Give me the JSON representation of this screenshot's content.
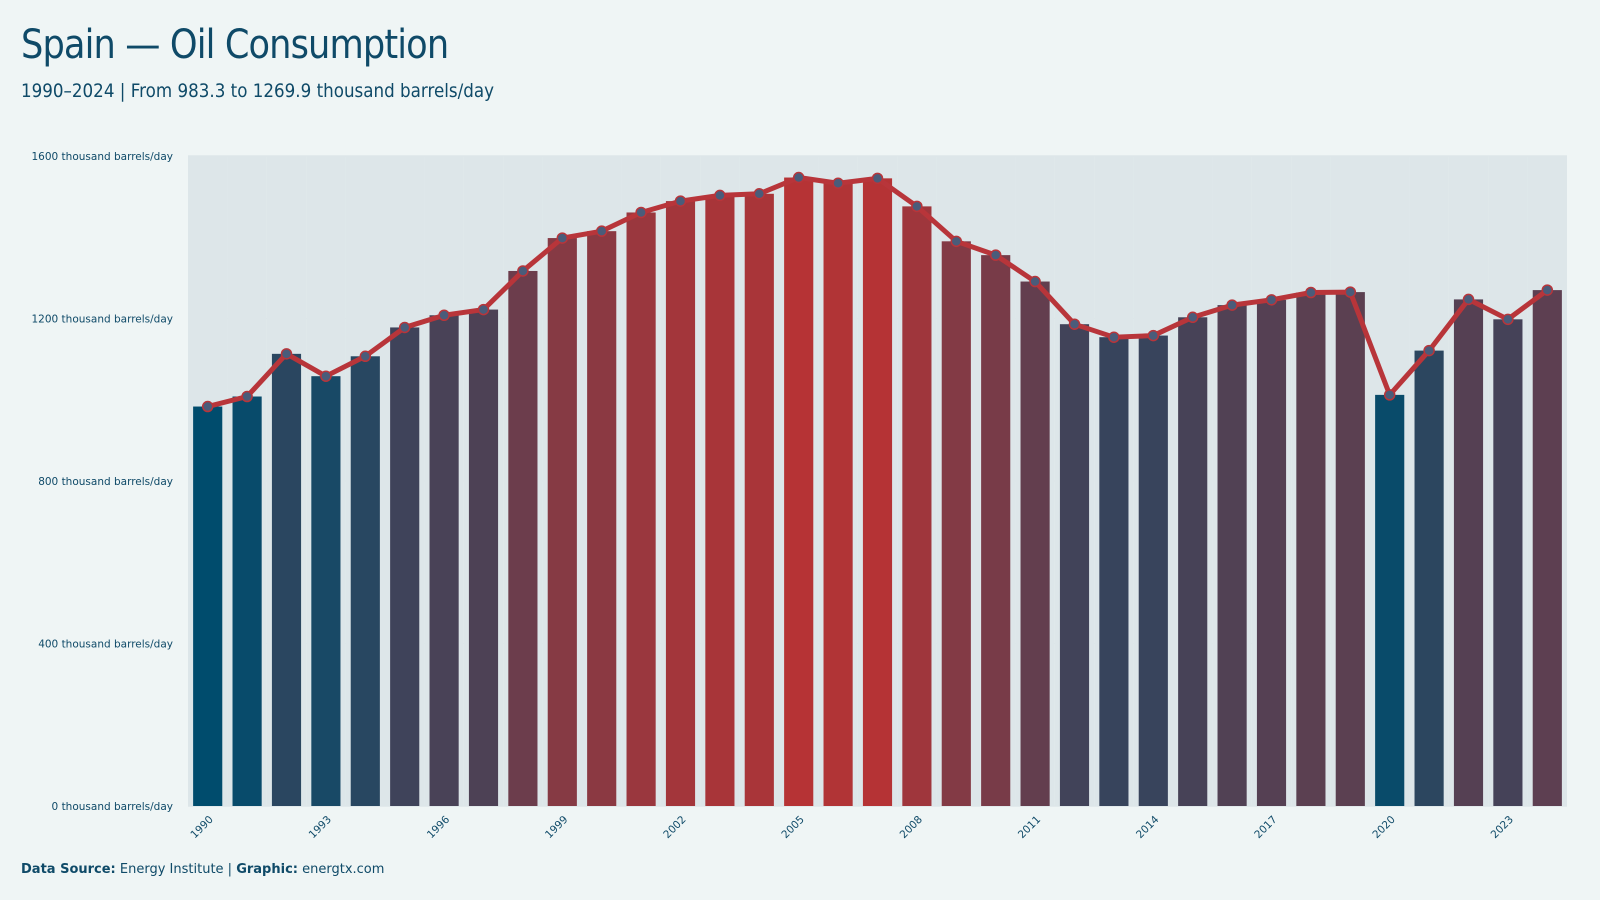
{
  "header": {
    "title": "Spain — Oil Consumption",
    "subtitle": "1990–2024 | From 983.3 to 1269.9 thousand barrels/day"
  },
  "footer": {
    "source_label": "Data Source:",
    "source_value": "Energy Institute |",
    "graphic_label": "Graphic:",
    "graphic_value": "energtx.com"
  },
  "colors": {
    "background": "#eff5f5",
    "text": "#0f4a68",
    "line": "#b8353a",
    "low": "#004c6d",
    "high": "#b63335",
    "marker": "#4a5c7a",
    "grid": "#d6dfe3"
  },
  "chart_data": {
    "type": "bar",
    "overlay": "line",
    "title": "Spain — Oil Consumption",
    "subtitle": "1990–2024 | From 983.3 to 1269.9 thousand barrels/day",
    "xlabel": "",
    "ylabel": "",
    "ylim": [
      0,
      1600
    ],
    "yticks": [
      0,
      400,
      800,
      1200,
      1600
    ],
    "ytick_labels": [
      "0 thousand barrels/day",
      "400 thousand barrels/day",
      "800 thousand barrels/day",
      "1200 thousand barrels/day",
      "1600 thousand barrels/day"
    ],
    "xtick_labels": [
      "1990",
      "1993",
      "1996",
      "1999",
      "2002",
      "2005",
      "2008",
      "2011",
      "2014",
      "2017",
      "2020",
      "2023"
    ],
    "grid": true,
    "categories": [
      1990,
      1991,
      1992,
      1993,
      1994,
      1995,
      1996,
      1997,
      1998,
      1999,
      2000,
      2001,
      2002,
      2003,
      2004,
      2005,
      2006,
      2007,
      2008,
      2009,
      2010,
      2011,
      2012,
      2013,
      2014,
      2015,
      2016,
      2017,
      2018,
      2019,
      2020,
      2021,
      2022,
      2023,
      2024
    ],
    "values": [
      983.3,
      1008,
      1113,
      1058,
      1107,
      1178,
      1208,
      1222,
      1317,
      1398,
      1415,
      1461,
      1489,
      1503,
      1507,
      1547,
      1533,
      1545,
      1476,
      1390,
      1356,
      1291,
      1186,
      1154,
      1158,
      1203,
      1233,
      1246,
      1264,
      1265,
      1012,
      1121,
      1247,
      1198,
      1269.9
    ]
  }
}
